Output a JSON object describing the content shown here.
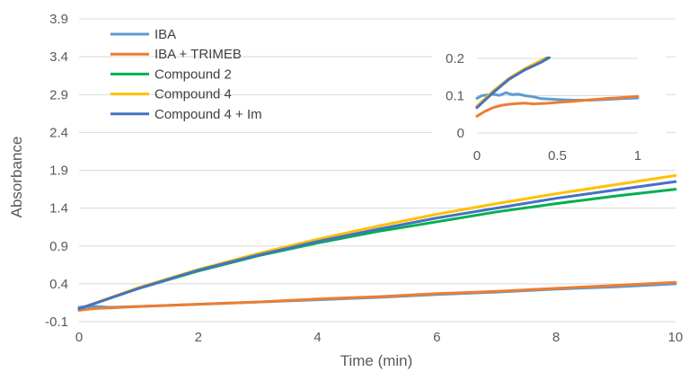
{
  "chart_data": [
    {
      "type": "line",
      "title": "",
      "xlabel": "Time (min)",
      "ylabel": "Absorbance",
      "xlim": [
        0,
        10
      ],
      "ylim": [
        -0.1,
        3.9
      ],
      "xticks": [
        0,
        2,
        4,
        6,
        8,
        10
      ],
      "yticks": [
        -0.1,
        0.4,
        0.9,
        1.4,
        1.9,
        2.4,
        2.9,
        3.4,
        3.9
      ],
      "grid": "horizontal",
      "legend": "top-left",
      "series": [
        {
          "name": "IBA",
          "color": "#5b9bd5",
          "x": [
            0,
            0.1,
            0.2,
            0.3,
            0.5,
            1,
            2,
            3,
            4,
            5,
            6,
            7,
            8,
            9,
            10
          ],
          "y": [
            0.09,
            0.1,
            0.1,
            0.1,
            0.09,
            0.1,
            0.13,
            0.16,
            0.19,
            0.22,
            0.26,
            0.29,
            0.33,
            0.36,
            0.4
          ]
        },
        {
          "name": "IBA + TRIMEB",
          "color": "#ed7d31",
          "x": [
            0,
            0.1,
            0.2,
            0.3,
            0.5,
            1,
            2,
            3,
            4,
            5,
            6,
            7,
            8,
            9,
            10
          ],
          "y": [
            0.05,
            0.06,
            0.07,
            0.075,
            0.08,
            0.1,
            0.13,
            0.16,
            0.2,
            0.23,
            0.27,
            0.3,
            0.34,
            0.38,
            0.42
          ]
        },
        {
          "name": "Compound 2",
          "color": "#00b050",
          "x": [
            0,
            1,
            2,
            3,
            4,
            5,
            6,
            7,
            8,
            9,
            10
          ],
          "y": [
            0.07,
            0.34,
            0.57,
            0.77,
            0.94,
            1.09,
            1.22,
            1.35,
            1.46,
            1.56,
            1.65
          ]
        },
        {
          "name": "Compound 4",
          "color": "#ffc000",
          "x": [
            0,
            1,
            2,
            3,
            4,
            5,
            6,
            7,
            8,
            9,
            10
          ],
          "y": [
            0.07,
            0.35,
            0.59,
            0.8,
            0.99,
            1.16,
            1.32,
            1.46,
            1.59,
            1.71,
            1.83
          ]
        },
        {
          "name": "Compound 4 + Im",
          "color": "#4472c4",
          "x": [
            0,
            1,
            2,
            3,
            4,
            5,
            6,
            7,
            8,
            9,
            10
          ],
          "y": [
            0.07,
            0.34,
            0.58,
            0.78,
            0.96,
            1.12,
            1.27,
            1.4,
            1.53,
            1.64,
            1.75
          ]
        }
      ]
    },
    {
      "type": "line",
      "title": "",
      "xlabel": "",
      "ylabel": "",
      "xlim": [
        0,
        1
      ],
      "ylim": [
        0,
        0.2
      ],
      "xticks": [
        0,
        0.5,
        1
      ],
      "yticks": [
        0,
        0.1,
        0.2
      ],
      "grid": "horizontal",
      "legend": "none",
      "series": [
        {
          "color": "#5b9bd5",
          "x": [
            0,
            0.03,
            0.06,
            0.1,
            0.14,
            0.18,
            0.22,
            0.26,
            0.3,
            0.35,
            0.4,
            0.5,
            0.6,
            0.7,
            0.8,
            0.9,
            1.0
          ],
          "y": [
            0.093,
            0.1,
            0.102,
            0.104,
            0.101,
            0.108,
            0.103,
            0.104,
            0.1,
            0.097,
            0.092,
            0.09,
            0.088,
            0.088,
            0.09,
            0.092,
            0.094
          ]
        },
        {
          "color": "#ed7d31",
          "x": [
            0,
            0.05,
            0.1,
            0.15,
            0.2,
            0.25,
            0.3,
            0.35,
            0.4,
            0.45,
            0.5,
            0.6,
            0.7,
            0.8,
            0.9,
            1.0
          ],
          "y": [
            0.045,
            0.058,
            0.068,
            0.074,
            0.077,
            0.079,
            0.08,
            0.078,
            0.079,
            0.08,
            0.082,
            0.085,
            0.089,
            0.092,
            0.095,
            0.098
          ]
        },
        {
          "color": "#00b050",
          "x": [
            0,
            0.1,
            0.2,
            0.3,
            0.4,
            0.45
          ],
          "y": [
            0.07,
            0.11,
            0.145,
            0.17,
            0.19,
            0.202
          ]
        },
        {
          "color": "#ffc000",
          "x": [
            0,
            0.1,
            0.2,
            0.3,
            0.4,
            0.45
          ],
          "y": [
            0.072,
            0.112,
            0.147,
            0.173,
            0.195,
            0.206
          ]
        },
        {
          "color": "#4472c4",
          "x": [
            0,
            0.1,
            0.2,
            0.3,
            0.4,
            0.45
          ],
          "y": [
            0.068,
            0.108,
            0.144,
            0.17,
            0.19,
            0.204
          ]
        }
      ]
    }
  ]
}
